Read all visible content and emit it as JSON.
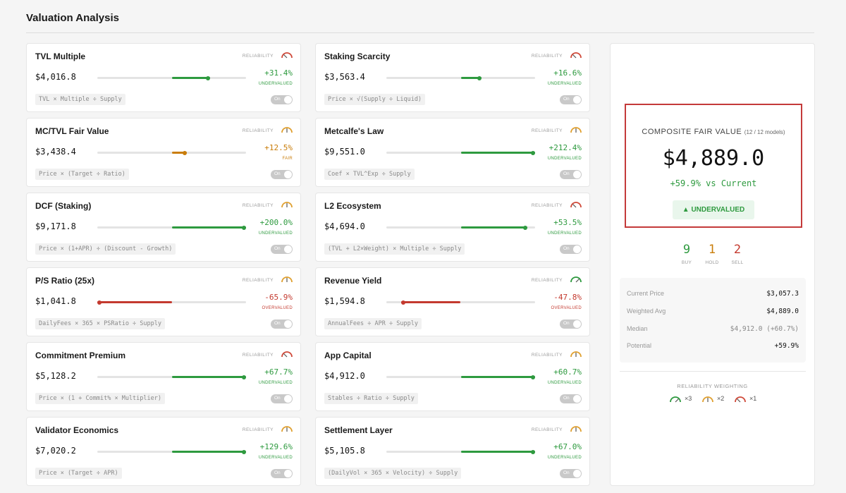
{
  "page": {
    "title": "Valuation Analysis"
  },
  "colors": {
    "green": "#2e9a3f",
    "orange": "#c97d0a",
    "red": "#c43a2f",
    "track": "#e4e4e4"
  },
  "reliability_label": "RELIABILITY",
  "toggle_label": "On",
  "models": [
    {
      "name": "TVL Multiple",
      "price": "$4,016.8",
      "pct": "+31.4%",
      "status": "UNDERVALUED",
      "tone": "green",
      "reliability": "low",
      "level": 0.76,
      "formula": "TVL × Multiple ÷ Supply"
    },
    {
      "name": "Staking Scarcity",
      "price": "$3,563.4",
      "pct": "+16.6%",
      "status": "UNDERVALUED",
      "tone": "green",
      "reliability": "low",
      "level": 0.64,
      "formula": "Price × √(Supply ÷ Liquid)"
    },
    {
      "name": "MC/TVL Fair Value",
      "price": "$3,438.4",
      "pct": "+12.5%",
      "status": "FAIR",
      "tone": "orange",
      "reliability": "mid",
      "level": 0.6,
      "formula": "Price × (Target ÷ Ratio)"
    },
    {
      "name": "Metcalfe's Law",
      "price": "$9,551.0",
      "pct": "+212.4%",
      "status": "UNDERVALUED",
      "tone": "green",
      "reliability": "mid",
      "level": 1.0,
      "formula": "Coef × TVL^Exp ÷ Supply"
    },
    {
      "name": "DCF (Staking)",
      "price": "$9,171.8",
      "pct": "+200.0%",
      "status": "UNDERVALUED",
      "tone": "green",
      "reliability": "mid",
      "level": 1.0,
      "formula": "Price × (1+APR) ÷ (Discount - Growth)"
    },
    {
      "name": "L2 Ecosystem",
      "price": "$4,694.0",
      "pct": "+53.5%",
      "status": "UNDERVALUED",
      "tone": "green",
      "reliability": "low",
      "level": 0.95,
      "formula": "(TVL + L2×Weight) × Multiple ÷ Supply"
    },
    {
      "name": "P/S Ratio (25x)",
      "price": "$1,041.8",
      "pct": "-65.9%",
      "status": "OVERVALUED",
      "tone": "red",
      "reliability": "mid",
      "level": 0.0,
      "formula": "DailyFees × 365 × PSRatio ÷ Supply"
    },
    {
      "name": "Revenue Yield",
      "price": "$1,594.8",
      "pct": "-47.8%",
      "status": "OVERVALUED",
      "tone": "red",
      "reliability": "high",
      "level": 0.1,
      "formula": "AnnualFees ÷ APR ÷ Supply"
    },
    {
      "name": "Commitment Premium",
      "price": "$5,128.2",
      "pct": "+67.7%",
      "status": "UNDERVALUED",
      "tone": "green",
      "reliability": "low",
      "level": 1.0,
      "formula": "Price × (1 + Commit% × Multiplier)"
    },
    {
      "name": "App Capital",
      "price": "$4,912.0",
      "pct": "+60.7%",
      "status": "UNDERVALUED",
      "tone": "green",
      "reliability": "mid",
      "level": 1.0,
      "formula": "Stables ÷ Ratio ÷ Supply"
    },
    {
      "name": "Validator Economics",
      "price": "$7,020.2",
      "pct": "+129.6%",
      "status": "UNDERVALUED",
      "tone": "green",
      "reliability": "mid",
      "level": 1.0,
      "formula": "Price × (Target ÷ APR)"
    },
    {
      "name": "Settlement Layer",
      "price": "$5,105.8",
      "pct": "+67.0%",
      "status": "UNDERVALUED",
      "tone": "green",
      "reliability": "mid",
      "level": 1.0,
      "formula": "(DailyVol × 365 × Velocity) ÷ Supply"
    }
  ],
  "composite": {
    "label": "COMPOSITE FAIR VALUE",
    "models_note": "(12 / 12 models)",
    "value": "$4,889.0",
    "delta": "+59.9% vs Current",
    "badge": "▲ UNDERVALUED"
  },
  "votes": [
    {
      "count": "9",
      "label": "BUY",
      "tone": "green"
    },
    {
      "count": "1",
      "label": "HOLD",
      "tone": "orange"
    },
    {
      "count": "2",
      "label": "SELL",
      "tone": "red"
    }
  ],
  "stats": [
    {
      "label": "Current Price",
      "value": "$3,057.3",
      "tone": ""
    },
    {
      "label": "Weighted Avg",
      "value": "$4,889.0",
      "tone": ""
    },
    {
      "label": "Median",
      "value": "$4,912.0 (+60.7%)",
      "tone": "muted"
    },
    {
      "label": "Potential",
      "value": "+59.9%",
      "tone": "green"
    }
  ],
  "weighting": {
    "label": "RELIABILITY WEIGHTING",
    "items": [
      {
        "reliability": "high",
        "text": "×3"
      },
      {
        "reliability": "mid",
        "text": "×2"
      },
      {
        "reliability": "low",
        "text": "×1"
      }
    ]
  }
}
